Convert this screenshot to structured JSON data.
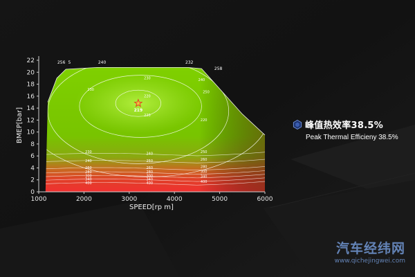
{
  "chart_data": {
    "type": "heatmap",
    "subtype": "engine BSFC contour map",
    "xlabel": "SPEED[rp m]",
    "ylabel": "BMEP[bar]",
    "xlim": [
      1000,
      6000
    ],
    "ylim": [
      0,
      22
    ],
    "x_ticks": [
      "1000",
      "2000",
      "3000",
      "4000",
      "5000",
      "6000"
    ],
    "y_ticks": [
      "0",
      "2",
      "4",
      "6",
      "8",
      "10",
      "12",
      "14",
      "16",
      "18",
      "20",
      "22"
    ],
    "grid": false,
    "full_load_curve": [
      {
        "x": 1200,
        "y": 15
      },
      {
        "x": 1400,
        "y": 19
      },
      {
        "x": 1600,
        "y": 20.5
      },
      {
        "x": 2300,
        "y": 20.8
      },
      {
        "x": 4300,
        "y": 20.8
      },
      {
        "x": 4600,
        "y": 20.6
      },
      {
        "x": 5500,
        "y": 13
      },
      {
        "x": 6000,
        "y": 9.5
      }
    ],
    "peak_point": {
      "x": 3200,
      "y": 14.8,
      "label": "219"
    },
    "top_labels": [
      {
        "x": 1500,
        "y": 21.4,
        "text": "256"
      },
      {
        "x": 1680,
        "y": 21.4,
        "text": "5"
      },
      {
        "x": 2400,
        "y": 21.4,
        "text": "240"
      },
      {
        "x": 4330,
        "y": 21.4,
        "text": "232"
      },
      {
        "x": 4970,
        "y": 20.4,
        "text": "258"
      }
    ],
    "contour_labels": [
      {
        "x": 3400,
        "y": 18.8,
        "text": "230"
      },
      {
        "x": 4600,
        "y": 18.5,
        "text": "240"
      },
      {
        "x": 4700,
        "y": 16.5,
        "text": "250"
      },
      {
        "x": 2150,
        "y": 16.9,
        "text": "230"
      },
      {
        "x": 3400,
        "y": 15.8,
        "text": "220"
      },
      {
        "x": 3400,
        "y": 12.6,
        "text": "220"
      },
      {
        "x": 4650,
        "y": 11.8,
        "text": "220"
      },
      {
        "x": 2100,
        "y": 6.5,
        "text": "230"
      },
      {
        "x": 3450,
        "y": 6.2,
        "text": "240"
      },
      {
        "x": 4650,
        "y": 6.5,
        "text": "250"
      },
      {
        "x": 2100,
        "y": 5.0,
        "text": "240"
      },
      {
        "x": 3450,
        "y": 5.0,
        "text": "250"
      },
      {
        "x": 4650,
        "y": 5.2,
        "text": "260"
      },
      {
        "x": 2100,
        "y": 3.8,
        "text": "260"
      },
      {
        "x": 3450,
        "y": 3.8,
        "text": "260"
      },
      {
        "x": 4650,
        "y": 4.0,
        "text": "280"
      },
      {
        "x": 2100,
        "y": 3.1,
        "text": "280"
      },
      {
        "x": 3450,
        "y": 3.1,
        "text": "280"
      },
      {
        "x": 4650,
        "y": 3.2,
        "text": "300"
      },
      {
        "x": 2100,
        "y": 2.5,
        "text": "300"
      },
      {
        "x": 3450,
        "y": 2.5,
        "text": "300"
      },
      {
        "x": 4650,
        "y": 2.4,
        "text": "340"
      },
      {
        "x": 2100,
        "y": 1.9,
        "text": "340"
      },
      {
        "x": 3450,
        "y": 1.9,
        "text": "340"
      },
      {
        "x": 2100,
        "y": 1.3,
        "text": "400"
      },
      {
        "x": 3450,
        "y": 1.3,
        "text": "400"
      },
      {
        "x": 4650,
        "y": 1.5,
        "text": "400"
      }
    ],
    "colors": {
      "efficient": "#7fd400",
      "center": "#a8e838",
      "mid": "#7cb800",
      "edge": "#b06a3a",
      "low_load": "#e83030",
      "contour_line": "#ffffff",
      "peak_marker": "#e04020"
    }
  },
  "callout": {
    "icon": "hexagon-icon",
    "title_cn": "峰值热效率38.5%",
    "title_en": "Peak Thermal Efficieny 38.5%"
  },
  "watermark": {
    "site_cn": "汽车经纬网",
    "url": "www.qichejingwei.com"
  }
}
